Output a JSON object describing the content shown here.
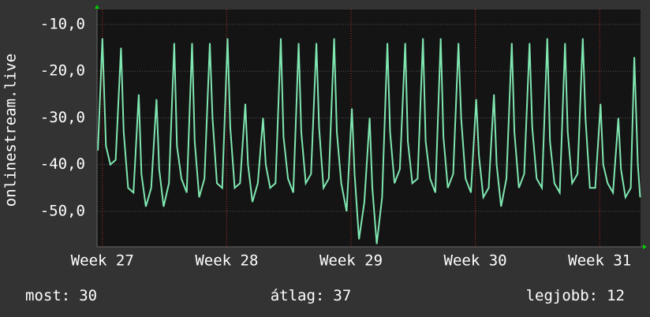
{
  "chart_data": {
    "type": "line",
    "y_axis_label": "onlinestream.live",
    "color": "#7fe6b0",
    "x": [
      0.05,
      0.3,
      0.5,
      0.75,
      1.05,
      1.35,
      1.5,
      1.75,
      2.05,
      2.35,
      2.5,
      2.75,
      3.05,
      3.35,
      3.5,
      3.75,
      4.05,
      4.35,
      4.5,
      4.75,
      5.05,
      5.35,
      5.5,
      5.75,
      6.05,
      6.35,
      6.5,
      6.75,
      7.05,
      7.35,
      7.5,
      7.75,
      8.05,
      8.35,
      8.5,
      8.75,
      9.05,
      9.35,
      9.5,
      9.75,
      10.05,
      10.35,
      10.5,
      10.75,
      11.05,
      11.35,
      11.5,
      11.75,
      12.05,
      12.35,
      12.5,
      12.75,
      13.05,
      13.35,
      13.5,
      13.75,
      14.05,
      14.35,
      14.5,
      14.75,
      15.05,
      15.35,
      15.5,
      15.75,
      16.05,
      16.35,
      16.5,
      16.75,
      17.05,
      17.35,
      17.5,
      17.75,
      18.05,
      18.35,
      18.5,
      18.75,
      19.05,
      19.35,
      19.5,
      19.75,
      20.05,
      20.35,
      20.5,
      20.75,
      21.05,
      21.35,
      21.5,
      21.75,
      22.05,
      22.35,
      22.5,
      22.75,
      23.05,
      23.35,
      23.5,
      23.75,
      24.05,
      24.35,
      24.5,
      24.75,
      25.05,
      25.35,
      25.5,
      25.75,
      26.05,
      26.35,
      26.5,
      26.75,
      27.05,
      27.35,
      27.5,
      27.75,
      28.05,
      28.35,
      28.5,
      28.75,
      29.05,
      29.35,
      29.5,
      29.75,
      30.05,
      30.25,
      30.45,
      30.58
    ],
    "values": [
      -37,
      -13,
      -36,
      -40,
      -39,
      -15,
      -33,
      -45,
      -46,
      -25,
      -42,
      -49,
      -45,
      -26,
      -41,
      -49,
      -44,
      -14,
      -36,
      -43,
      -46,
      -14,
      -35,
      -47,
      -43,
      -14,
      -30,
      -44,
      -45,
      -13,
      -32,
      -45,
      -44,
      -27,
      -40,
      -48,
      -44,
      -30,
      -40,
      -45,
      -44,
      -13,
      -34,
      -43,
      -46,
      -14,
      -33,
      -44,
      -42,
      -14,
      -32,
      -45,
      -43,
      -13,
      -33,
      -44,
      -50,
      -28,
      -42,
      -56,
      -48,
      -30,
      -45,
      -57,
      -47,
      -14,
      -33,
      -44,
      -41,
      -14,
      -35,
      -44,
      -43,
      -13,
      -35,
      -43,
      -46,
      -13,
      -34,
      -45,
      -42,
      -14,
      -30,
      -43,
      -46,
      -26,
      -38,
      -47,
      -45,
      -25,
      -40,
      -49,
      -43,
      -14,
      -33,
      -45,
      -42,
      -14,
      -32,
      -43,
      -45,
      -13,
      -35,
      -44,
      -46,
      -14,
      -33,
      -44,
      -42,
      -13,
      -30,
      -45,
      -45,
      -27,
      -40,
      -44,
      -46,
      -30,
      -41,
      -47,
      -45,
      -17,
      -40,
      -47
    ],
    "xlim": [
      0,
      30.6
    ],
    "xticks": [
      {
        "value": 0.3,
        "label": "Week 27"
      },
      {
        "value": 7.3,
        "label": "Week 28"
      },
      {
        "value": 14.3,
        "label": "Week 29"
      },
      {
        "value": 21.3,
        "label": "Week 30"
      },
      {
        "value": 28.3,
        "label": "Week 31"
      }
    ],
    "ylim": [
      -57.6,
      -6.8
    ],
    "yticks": [
      {
        "value": -50,
        "label": "-50,0"
      },
      {
        "value": -40,
        "label": "-40,0"
      },
      {
        "value": -30,
        "label": "-30,0"
      },
      {
        "value": -20,
        "label": "-20,0"
      },
      {
        "value": -10,
        "label": "-10,0"
      }
    ],
    "grid": true,
    "summary": [
      {
        "label": "most:",
        "value": 30
      },
      {
        "label": "átlag:",
        "value": 37
      },
      {
        "label": "legjobb:",
        "value": 12
      }
    ]
  }
}
